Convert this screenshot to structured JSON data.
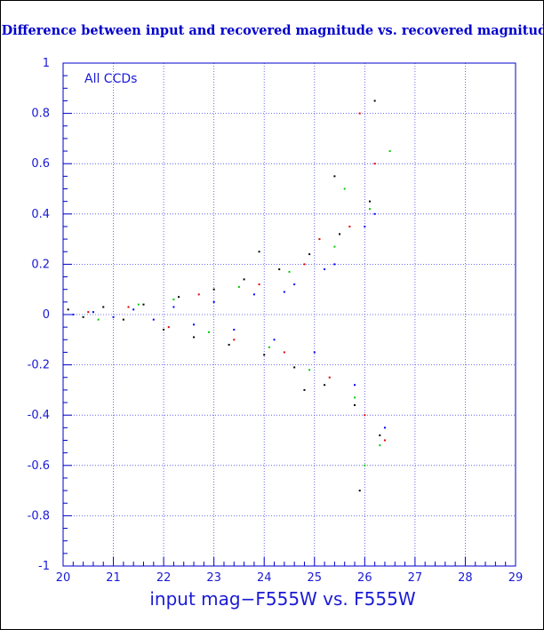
{
  "colors": {
    "axis": "#0000cc",
    "grid": "#4a4ae6",
    "title": "#0000cc",
    "series": [
      "#000000",
      "#e00000",
      "#00cc00",
      "#0000ff"
    ]
  },
  "chart_data": {
    "type": "scatter",
    "title": "Difference between input and recovered magnitude vs. recovered magnitude",
    "xlabel": "input mag−F555W vs. F555W",
    "ylabel": "",
    "annotation": "All CCDs",
    "xlim": [
      20,
      29
    ],
    "ylim": [
      -1,
      1
    ],
    "x_ticks": [
      20,
      21,
      22,
      23,
      24,
      25,
      26,
      27,
      28,
      29
    ],
    "y_ticks": [
      -1,
      -0.8,
      -0.6,
      -0.4,
      -0.2,
      0,
      0.2,
      0.4,
      0.6,
      0.8,
      1
    ],
    "grid": true,
    "legend": "none",
    "series": [
      {
        "color": "#000000",
        "x": [
          20.1,
          20.4,
          20.8,
          21.2,
          21.6,
          22.0,
          22.3,
          22.6,
          23.0,
          23.3,
          23.6,
          24.0,
          24.3,
          24.6,
          24.9,
          25.2,
          25.5,
          25.8,
          26.1,
          26.3,
          24.8,
          25.4,
          25.9,
          23.9,
          26.2
        ],
        "y": [
          0.02,
          -0.01,
          0.03,
          -0.02,
          0.04,
          -0.06,
          0.07,
          -0.09,
          0.1,
          -0.12,
          0.14,
          -0.16,
          0.18,
          -0.21,
          0.24,
          -0.28,
          0.32,
          -0.36,
          0.45,
          -0.48,
          -0.3,
          0.55,
          -0.7,
          0.25,
          0.85
        ]
      },
      {
        "color": "#e00000",
        "x": [
          20.5,
          21.3,
          22.1,
          22.7,
          23.4,
          23.9,
          24.4,
          24.8,
          25.3,
          25.7,
          26.0,
          26.2,
          26.4,
          25.1,
          25.9
        ],
        "y": [
          0.01,
          0.03,
          -0.05,
          0.08,
          -0.1,
          0.12,
          -0.15,
          0.2,
          -0.25,
          0.35,
          -0.4,
          0.6,
          -0.5,
          0.3,
          0.8
        ]
      },
      {
        "color": "#00cc00",
        "x": [
          20.7,
          21.5,
          22.2,
          22.9,
          23.5,
          24.1,
          24.5,
          24.9,
          25.4,
          25.8,
          26.1,
          26.3,
          26.5,
          25.6,
          26.0
        ],
        "y": [
          -0.02,
          0.04,
          0.06,
          -0.07,
          0.11,
          -0.13,
          0.17,
          -0.22,
          0.27,
          -0.33,
          0.42,
          -0.52,
          0.65,
          0.5,
          -0.6
        ]
      },
      {
        "color": "#0000ff",
        "x": [
          20.2,
          20.6,
          21.0,
          21.4,
          21.8,
          22.2,
          22.6,
          23.0,
          23.4,
          23.8,
          24.2,
          24.6,
          25.0,
          25.4,
          25.8,
          26.2,
          26.4,
          24.4,
          25.2,
          26.0
        ],
        "y": [
          0.0,
          0.01,
          -0.01,
          0.02,
          -0.02,
          0.03,
          -0.04,
          0.05,
          -0.06,
          0.08,
          -0.1,
          0.12,
          -0.15,
          0.2,
          -0.28,
          0.4,
          -0.45,
          0.09,
          0.18,
          0.35
        ]
      }
    ]
  }
}
